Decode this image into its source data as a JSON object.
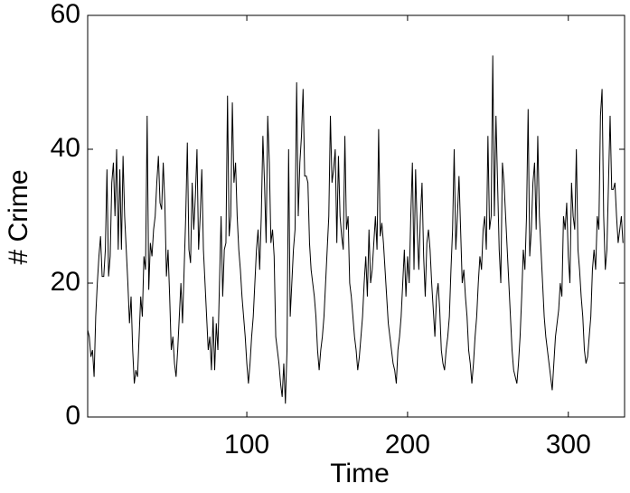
{
  "chart_data": {
    "type": "line",
    "x_label": "Time",
    "y_label": "# Crime",
    "x": [
      1,
      2,
      3,
      4,
      5,
      6,
      7,
      8,
      9,
      10,
      11,
      12,
      13,
      14,
      15,
      16,
      17,
      18,
      19,
      20,
      21,
      22,
      23,
      24,
      25,
      26,
      27,
      28,
      29,
      30,
      31,
      32,
      33,
      34,
      35,
      36,
      37,
      38,
      39,
      40,
      41,
      42,
      43,
      44,
      45,
      46,
      47,
      48,
      49,
      50,
      51,
      52,
      53,
      54,
      55,
      56,
      57,
      58,
      59,
      60,
      61,
      62,
      63,
      64,
      65,
      66,
      67,
      68,
      69,
      70,
      71,
      72,
      73,
      74,
      75,
      76,
      77,
      78,
      79,
      80,
      81,
      82,
      83,
      84,
      85,
      86,
      87,
      88,
      89,
      90,
      91,
      92,
      93,
      94,
      95,
      96,
      97,
      98,
      99,
      100,
      101,
      102,
      103,
      104,
      105,
      106,
      107,
      108,
      109,
      110,
      111,
      112,
      113,
      114,
      115,
      116,
      117,
      118,
      119,
      120,
      121,
      122,
      123,
      124,
      125,
      126,
      127,
      128,
      129,
      130,
      131,
      132,
      133,
      134,
      135,
      136,
      137,
      138,
      139,
      140,
      141,
      142,
      143,
      144,
      145,
      146,
      147,
      148,
      149,
      150,
      151,
      152,
      153,
      154,
      155,
      156,
      157,
      158,
      159,
      160,
      161,
      162,
      163,
      164,
      165,
      166,
      167,
      168,
      169,
      170,
      171,
      172,
      173,
      174,
      175,
      176,
      177,
      178,
      179,
      180,
      181,
      182,
      183,
      184,
      185,
      186,
      187,
      188,
      189,
      190,
      191,
      192,
      193,
      194,
      195,
      196,
      197,
      198,
      199,
      200,
      201,
      202,
      203,
      204,
      205,
      206,
      207,
      208,
      209,
      210,
      211,
      212,
      213,
      214,
      215,
      216,
      217,
      218,
      219,
      220,
      221,
      222,
      223,
      224,
      225,
      226,
      227,
      228,
      229,
      230,
      231,
      232,
      233,
      234,
      235,
      236,
      237,
      238,
      239,
      240,
      241,
      242,
      243,
      244,
      245,
      246,
      247,
      248,
      249,
      250,
      251,
      252,
      253,
      254,
      255,
      256,
      257,
      258,
      259,
      260,
      261,
      262,
      263,
      264,
      265,
      266,
      267,
      268,
      269,
      270,
      271,
      272,
      273,
      274,
      275,
      276,
      277,
      278,
      279,
      280,
      281,
      282,
      283,
      284,
      285,
      286,
      287,
      288,
      289,
      290,
      291,
      292,
      293,
      294,
      295,
      296,
      297,
      298,
      299,
      300,
      301,
      302,
      303,
      304,
      305,
      306,
      307,
      308,
      309,
      310,
      311,
      312,
      313,
      314,
      315,
      316,
      317,
      318,
      319,
      320,
      321,
      322,
      323,
      324,
      325,
      326,
      327,
      328,
      329,
      330,
      331,
      332,
      333,
      334
    ],
    "series": [
      {
        "color": "#000000",
        "values": [
          13,
          12,
          9,
          10,
          6,
          15,
          20,
          24,
          27,
          21,
          21,
          25,
          37,
          21,
          24,
          35,
          38,
          30,
          40,
          25,
          37,
          25,
          39,
          30,
          25,
          20,
          14,
          18,
          10,
          5,
          7,
          6,
          12,
          18,
          15,
          24,
          22,
          45,
          19,
          26,
          24,
          28,
          30,
          35,
          39,
          32,
          31,
          38,
          32,
          21,
          25,
          18,
          10,
          12,
          8,
          6,
          10,
          15,
          20,
          14,
          22,
          30,
          41,
          25,
          23,
          35,
          28,
          33,
          40,
          25,
          30,
          37,
          25,
          20,
          15,
          10,
          12,
          7,
          15,
          7,
          14,
          10,
          20,
          30,
          18,
          25,
          26,
          48,
          27,
          30,
          47,
          35,
          38,
          30,
          25,
          22,
          18,
          15,
          12,
          8,
          5,
          8,
          12,
          15,
          20,
          25,
          28,
          22,
          30,
          42,
          35,
          26,
          45,
          38,
          26,
          28,
          24,
          12,
          10,
          8,
          5,
          3,
          8,
          2,
          10,
          40,
          15,
          20,
          25,
          28,
          50,
          30,
          38,
          42,
          49,
          36,
          36,
          35,
          26,
          22,
          20,
          18,
          15,
          10,
          7,
          10,
          12,
          15,
          20,
          25,
          30,
          45,
          35,
          37,
          40,
          26,
          39,
          30,
          27,
          25,
          42,
          28,
          30,
          20,
          18,
          15,
          12,
          10,
          7,
          9,
          12,
          15,
          20,
          24,
          18,
          28,
          20,
          22,
          26,
          30,
          25,
          43,
          27,
          29,
          26,
          22,
          18,
          14,
          12,
          10,
          8,
          7,
          5,
          10,
          12,
          15,
          20,
          25,
          18,
          24,
          20,
          30,
          38,
          22,
          37,
          28,
          22,
          30,
          35,
          24,
          18,
          26,
          28,
          25,
          20,
          16,
          12,
          18,
          20,
          16,
          10,
          8,
          7,
          10,
          12,
          15,
          22,
          28,
          40,
          25,
          30,
          36,
          28,
          20,
          22,
          18,
          15,
          10,
          8,
          5,
          8,
          12,
          15,
          20,
          24,
          22,
          28,
          30,
          25,
          42,
          28,
          30,
          54,
          30,
          45,
          35,
          25,
          20,
          38,
          35,
          30,
          25,
          20,
          15,
          10,
          7,
          6,
          5,
          8,
          12,
          18,
          25,
          22,
          30,
          46,
          24,
          28,
          35,
          38,
          28,
          42,
          30,
          25,
          20,
          15,
          12,
          10,
          8,
          6,
          4,
          8,
          12,
          14,
          16,
          20,
          18,
          30,
          28,
          32,
          24,
          20,
          35,
          30,
          28,
          40,
          25,
          22,
          18,
          15,
          10,
          8,
          9,
          12,
          15,
          22,
          25,
          22,
          30,
          28,
          45,
          49,
          30,
          22,
          25,
          35,
          45,
          34,
          34,
          35,
          30,
          26,
          28,
          30,
          26
        ]
      }
    ],
    "xlim": [
      1,
      335
    ],
    "xticks": [
      100,
      200,
      300
    ],
    "ylim": [
      0,
      60
    ],
    "yticks": [
      0,
      20,
      40,
      60
    ]
  }
}
